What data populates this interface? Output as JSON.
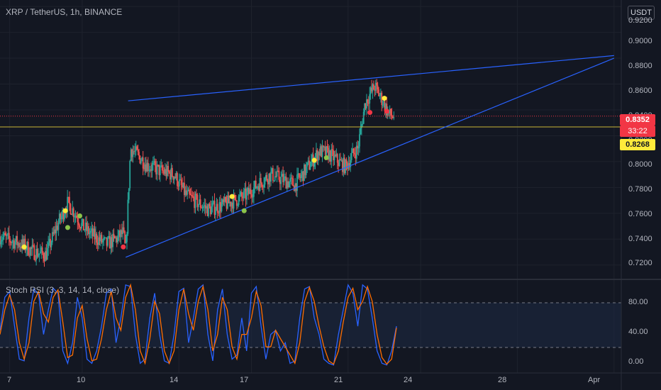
{
  "header": {
    "symbol": "XRP / TetherUS, 1h, BINANCE",
    "currency_button": "USDT",
    "indicator": "Stoch RSI (3, 3, 14, 14, close)"
  },
  "price_axis": [
    "0.9200",
    "0.9000",
    "0.8800",
    "0.8600",
    "0.8400",
    "0.8200",
    "0.8000",
    "0.7800",
    "0.7600",
    "0.7400",
    "0.7200"
  ],
  "rsi_axis": [
    "80.00",
    "40.00",
    "0.00"
  ],
  "time_axis": [
    "7",
    "10",
    "14",
    "17",
    "21",
    "24",
    "28",
    "Apr"
  ],
  "tags": {
    "last_price": "0.8352",
    "countdown": "33:22",
    "hline_price": "0.8268"
  },
  "colors": {
    "background": "#131722",
    "up": "#26a69a",
    "down": "#ef5350",
    "trendline": "#2962ff",
    "hline": "#c9b637",
    "rsi_k": "#2962ff",
    "rsi_d": "#ff6d00"
  },
  "chart_data": {
    "type": "candlestick",
    "ylim": [
      0.71,
      0.925
    ],
    "price_path": [
      [
        6.6,
        0.742
      ],
      [
        7.2,
        0.738
      ],
      [
        7.6,
        0.735
      ],
      [
        8.0,
        0.73
      ],
      [
        8.5,
        0.728
      ],
      [
        9.0,
        0.752
      ],
      [
        9.4,
        0.768
      ],
      [
        9.7,
        0.76
      ],
      [
        10.0,
        0.75
      ],
      [
        10.5,
        0.742
      ],
      [
        11.0,
        0.736
      ],
      [
        11.4,
        0.74
      ],
      [
        11.7,
        0.745
      ],
      [
        11.8,
        0.729
      ],
      [
        12.0,
        0.81
      ],
      [
        12.3,
        0.805
      ],
      [
        12.7,
        0.797
      ],
      [
        13.2,
        0.793
      ],
      [
        13.8,
        0.79
      ],
      [
        14.3,
        0.774
      ],
      [
        14.8,
        0.768
      ],
      [
        15.2,
        0.763
      ],
      [
        15.8,
        0.766
      ],
      [
        16.3,
        0.77
      ],
      [
        16.8,
        0.774
      ],
      [
        17.3,
        0.783
      ],
      [
        17.8,
        0.79
      ],
      [
        18.3,
        0.786
      ],
      [
        18.8,
        0.782
      ],
      [
        19.3,
        0.795
      ],
      [
        19.8,
        0.808
      ],
      [
        20.2,
        0.806
      ],
      [
        20.6,
        0.8
      ],
      [
        20.9,
        0.796
      ],
      [
        21.2,
        0.806
      ],
      [
        21.4,
        0.81
      ],
      [
        21.7,
        0.845
      ],
      [
        21.9,
        0.852
      ],
      [
        22.1,
        0.858
      ],
      [
        22.4,
        0.848
      ],
      [
        22.7,
        0.836
      ],
      [
        22.9,
        0.835
      ]
    ],
    "trendlines": [
      {
        "from": [
          11.9,
          0.847
        ],
        "to": [
          32.0,
          0.882
        ]
      },
      {
        "from": [
          11.8,
          0.726
        ],
        "to": [
          32.0,
          0.88
        ]
      }
    ],
    "horizontal_line": 0.8268,
    "signals": [
      {
        "x": 7.6,
        "y": 0.734,
        "color": "#ffeb3b"
      },
      {
        "x": 9.3,
        "y": 0.762,
        "color": "#ffeb3b"
      },
      {
        "x": 9.4,
        "y": 0.749,
        "color": "#8bc34a"
      },
      {
        "x": 9.9,
        "y": 0.758,
        "color": "#8bc34a"
      },
      {
        "x": 11.7,
        "y": 0.734,
        "color": "#f23645"
      },
      {
        "x": 16.2,
        "y": 0.773,
        "color": "#ffeb3b"
      },
      {
        "x": 16.7,
        "y": 0.762,
        "color": "#8bc34a"
      },
      {
        "x": 19.6,
        "y": 0.801,
        "color": "#ffeb3b"
      },
      {
        "x": 20.1,
        "y": 0.803,
        "color": "#8bc34a"
      },
      {
        "x": 21.9,
        "y": 0.838,
        "color": "#f23645"
      },
      {
        "x": 22.5,
        "y": 0.849,
        "color": "#ffeb3b"
      },
      {
        "x": 22.6,
        "y": 0.839,
        "color": "#f23645"
      }
    ],
    "rsi": {
      "ylim": [
        -5,
        105
      ],
      "band": [
        20,
        80
      ],
      "k_path": [
        [
          6.6,
          45
        ],
        [
          6.8,
          85
        ],
        [
          7.0,
          92
        ],
        [
          7.2,
          50
        ],
        [
          7.4,
          10
        ],
        [
          7.6,
          8
        ],
        [
          7.8,
          60
        ],
        [
          8.0,
          95
        ],
        [
          8.2,
          88
        ],
        [
          8.4,
          40
        ],
        [
          8.6,
          70
        ],
        [
          8.8,
          96
        ],
        [
          9.0,
          90
        ],
        [
          9.2,
          20
        ],
        [
          9.4,
          5
        ],
        [
          9.6,
          30
        ],
        [
          9.8,
          85
        ],
        [
          10.0,
          60
        ],
        [
          10.2,
          10
        ],
        [
          10.4,
          5
        ],
        [
          10.6,
          20
        ],
        [
          10.8,
          50
        ],
        [
          11.0,
          90
        ],
        [
          11.2,
          95
        ],
        [
          11.4,
          30
        ],
        [
          11.6,
          60
        ],
        [
          11.8,
          100
        ],
        [
          12.0,
          98
        ],
        [
          12.2,
          40
        ],
        [
          12.4,
          5
        ],
        [
          12.6,
          10
        ],
        [
          12.8,
          60
        ],
        [
          13.0,
          90
        ],
        [
          13.2,
          40
        ],
        [
          13.4,
          8
        ],
        [
          13.6,
          5
        ],
        [
          13.8,
          40
        ],
        [
          14.0,
          92
        ],
        [
          14.2,
          96
        ],
        [
          14.4,
          30
        ],
        [
          14.6,
          60
        ],
        [
          14.8,
          95
        ],
        [
          15.0,
          100
        ],
        [
          15.2,
          40
        ],
        [
          15.4,
          8
        ],
        [
          15.6,
          70
        ],
        [
          15.8,
          95
        ],
        [
          16.0,
          40
        ],
        [
          16.2,
          10
        ],
        [
          16.4,
          15
        ],
        [
          16.6,
          60
        ],
        [
          16.8,
          20
        ],
        [
          17.0,
          90
        ],
        [
          17.2,
          98
        ],
        [
          17.4,
          50
        ],
        [
          17.6,
          10
        ],
        [
          17.8,
          40
        ],
        [
          18.0,
          45
        ],
        [
          18.2,
          20
        ],
        [
          18.4,
          30
        ],
        [
          18.6,
          5
        ],
        [
          18.8,
          8
        ],
        [
          19.0,
          60
        ],
        [
          19.2,
          95
        ],
        [
          19.4,
          98
        ],
        [
          19.6,
          60
        ],
        [
          19.8,
          40
        ],
        [
          20.0,
          10
        ],
        [
          20.2,
          5
        ],
        [
          20.4,
          3
        ],
        [
          20.6,
          40
        ],
        [
          20.8,
          70
        ],
        [
          21.0,
          100
        ],
        [
          21.2,
          90
        ],
        [
          21.4,
          50
        ],
        [
          21.6,
          100
        ],
        [
          21.8,
          95
        ],
        [
          22.0,
          60
        ],
        [
          22.2,
          20
        ],
        [
          22.4,
          5
        ],
        [
          22.6,
          3
        ],
        [
          22.8,
          20
        ],
        [
          23.0,
          50
        ]
      ],
      "d_path": [
        [
          6.6,
          40
        ],
        [
          6.8,
          70
        ],
        [
          7.0,
          88
        ],
        [
          7.2,
          70
        ],
        [
          7.4,
          30
        ],
        [
          7.6,
          10
        ],
        [
          7.8,
          30
        ],
        [
          8.0,
          80
        ],
        [
          8.2,
          92
        ],
        [
          8.4,
          65
        ],
        [
          8.6,
          55
        ],
        [
          8.8,
          85
        ],
        [
          9.0,
          94
        ],
        [
          9.2,
          55
        ],
        [
          9.4,
          12
        ],
        [
          9.6,
          15
        ],
        [
          9.8,
          60
        ],
        [
          10.0,
          75
        ],
        [
          10.2,
          35
        ],
        [
          10.4,
          8
        ],
        [
          10.6,
          10
        ],
        [
          10.8,
          35
        ],
        [
          11.0,
          70
        ],
        [
          11.2,
          92
        ],
        [
          11.4,
          60
        ],
        [
          11.6,
          45
        ],
        [
          11.8,
          85
        ],
        [
          12.0,
          100
        ],
        [
          12.2,
          70
        ],
        [
          12.4,
          20
        ],
        [
          12.6,
          5
        ],
        [
          12.8,
          35
        ],
        [
          13.0,
          80
        ],
        [
          13.2,
          65
        ],
        [
          13.4,
          20
        ],
        [
          13.6,
          5
        ],
        [
          13.8,
          20
        ],
        [
          14.0,
          70
        ],
        [
          14.2,
          95
        ],
        [
          14.4,
          65
        ],
        [
          14.6,
          45
        ],
        [
          14.8,
          80
        ],
        [
          15.0,
          98
        ],
        [
          15.2,
          70
        ],
        [
          15.4,
          20
        ],
        [
          15.6,
          40
        ],
        [
          15.8,
          85
        ],
        [
          16.0,
          70
        ],
        [
          16.2,
          25
        ],
        [
          16.4,
          10
        ],
        [
          16.6,
          40
        ],
        [
          16.8,
          40
        ],
        [
          17.0,
          60
        ],
        [
          17.2,
          92
        ],
        [
          17.4,
          75
        ],
        [
          17.6,
          25
        ],
        [
          17.8,
          25
        ],
        [
          18.0,
          45
        ],
        [
          18.2,
          35
        ],
        [
          18.4,
          25
        ],
        [
          18.6,
          15
        ],
        [
          18.8,
          5
        ],
        [
          19.0,
          30
        ],
        [
          19.2,
          80
        ],
        [
          19.4,
          97
        ],
        [
          19.6,
          80
        ],
        [
          19.8,
          50
        ],
        [
          20.0,
          25
        ],
        [
          20.2,
          8
        ],
        [
          20.4,
          4
        ],
        [
          20.6,
          20
        ],
        [
          20.8,
          55
        ],
        [
          21.0,
          85
        ],
        [
          21.2,
          96
        ],
        [
          21.4,
          70
        ],
        [
          21.6,
          80
        ],
        [
          21.8,
          98
        ],
        [
          22.0,
          80
        ],
        [
          22.2,
          40
        ],
        [
          22.4,
          12
        ],
        [
          22.6,
          4
        ],
        [
          22.8,
          10
        ],
        [
          23.0,
          48
        ]
      ]
    },
    "xlim": [
      6.6,
      32.3
    ]
  }
}
